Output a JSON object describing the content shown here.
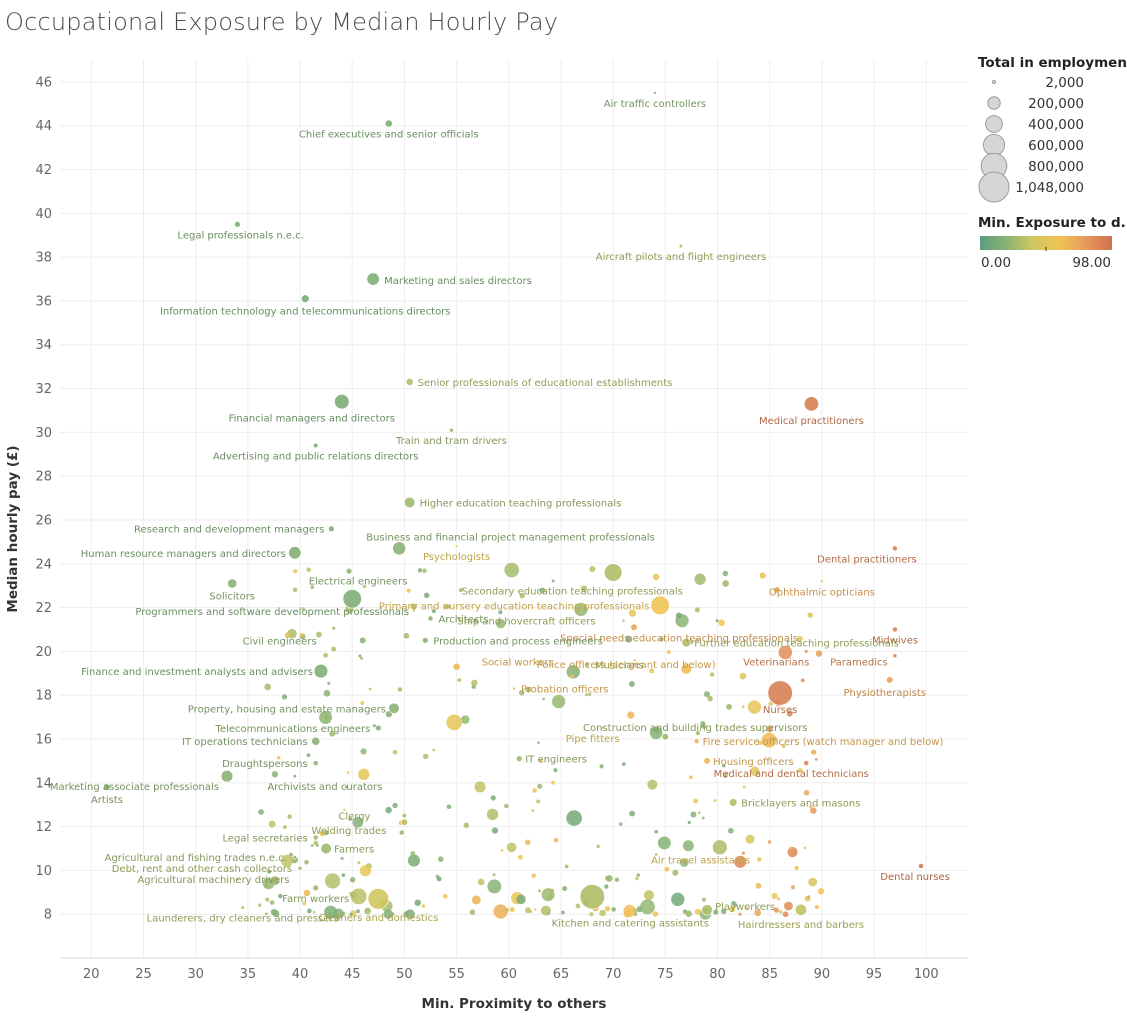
{
  "page": {
    "title": "Occupational Exposure by Median Hourly Pay"
  },
  "chart_data": {
    "type": "scatter",
    "title": "Occupational Exposure by Median Hourly Pay",
    "xlabel": "Min. Proximity to others",
    "ylabel": "Median hourly pay (£)",
    "xlim": [
      17,
      104
    ],
    "ylim": [
      6,
      47
    ],
    "xticks": [
      20,
      25,
      30,
      35,
      40,
      45,
      50,
      55,
      60,
      65,
      70,
      75,
      80,
      85,
      90,
      95,
      100
    ],
    "yticks": [
      8,
      10,
      12,
      14,
      16,
      18,
      20,
      22,
      24,
      26,
      28,
      30,
      32,
      34,
      36,
      38,
      40,
      42,
      44,
      46
    ],
    "grid": true,
    "size_encoding": "Total in employment",
    "color_encoding": "Min. Exposure to d..",
    "labeled_points": [
      {
        "label": "Air traffic controllers",
        "x": 74,
        "y": 45.5,
        "size": 2000,
        "exposure": 20
      },
      {
        "label": "Chief executives and senior officials",
        "x": 48.5,
        "y": 44.1,
        "size": 60000,
        "exposure": 15
      },
      {
        "label": "Legal professionals n.e.c.",
        "x": 34,
        "y": 39.5,
        "size": 40000,
        "exposure": 15
      },
      {
        "label": "Aircraft pilots and flight engineers",
        "x": 76.5,
        "y": 38.5,
        "size": 15000,
        "exposure": 30
      },
      {
        "label": "Marketing and sales directors",
        "x": 47,
        "y": 37,
        "size": 180000,
        "exposure": 15
      },
      {
        "label": "Information technology and telecommunications directors",
        "x": 40.5,
        "y": 36.1,
        "size": 70000,
        "exposure": 12
      },
      {
        "label": "Senior professionals of educational establishments",
        "x": 50.5,
        "y": 32.3,
        "size": 60000,
        "exposure": 30
      },
      {
        "label": "Financial managers and directors",
        "x": 44,
        "y": 31.4,
        "size": 250000,
        "exposure": 14
      },
      {
        "label": "Medical practitioners",
        "x": 89,
        "y": 31.3,
        "size": 240000,
        "exposure": 92
      },
      {
        "label": "Train and tram drivers",
        "x": 54.5,
        "y": 30.1,
        "size": 20000,
        "exposure": 25
      },
      {
        "label": "Advertising and public relations directors",
        "x": 41.5,
        "y": 29.4,
        "size": 25000,
        "exposure": 15
      },
      {
        "label": "Higher education teaching professionals",
        "x": 50.5,
        "y": 26.8,
        "size": 130000,
        "exposure": 25
      },
      {
        "label": "Research and development managers",
        "x": 43,
        "y": 25.6,
        "size": 40000,
        "exposure": 15
      },
      {
        "label": "Business and financial project management professionals",
        "x": 49.5,
        "y": 24.7,
        "size": 200000,
        "exposure": 20
      },
      {
        "label": "Human resource managers and directors",
        "x": 39.5,
        "y": 24.5,
        "size": 180000,
        "exposure": 15
      },
      {
        "label": "Psychologists",
        "x": 55,
        "y": 24.8,
        "size": 8000,
        "exposure": 55
      },
      {
        "label": "Dental practitioners",
        "x": 97,
        "y": 24.7,
        "size": 30000,
        "exposure": 90
      },
      {
        "label": "Electrical engineers",
        "x": 51.5,
        "y": 23.7,
        "size": 30000,
        "exposure": 20
      },
      {
        "label": "Secondary education teaching professionals",
        "x": 70,
        "y": 23.6,
        "size": 360000,
        "exposure": 30
      },
      {
        "label": "Ophthalmic opticians",
        "x": 90,
        "y": 23.2,
        "size": 5000,
        "exposure": 70
      },
      {
        "label": "Solicitors",
        "x": 33.5,
        "y": 23.1,
        "size": 100000,
        "exposure": 20
      },
      {
        "label": "Architects",
        "x": 52.5,
        "y": 21.5,
        "size": 30000,
        "exposure": 20
      },
      {
        "label": "Primary and nursery education teaching professionals",
        "x": 74.5,
        "y": 22.1,
        "size": 400000,
        "exposure": 58
      },
      {
        "label": "Ship and hovercraft officers",
        "x": 71,
        "y": 21.4,
        "size": 6000,
        "exposure": 30
      },
      {
        "label": "Special needs education teaching professionals",
        "x": 72,
        "y": 21.1,
        "size": 50000,
        "exposure": 72
      },
      {
        "label": "Programmers and software development professionals",
        "x": 45,
        "y": 22.4,
        "size": 400000,
        "exposure": 15
      },
      {
        "label": "Midwives",
        "x": 97,
        "y": 21,
        "size": 30000,
        "exposure": 90
      },
      {
        "label": "Further education teaching professionals",
        "x": 77,
        "y": 20.4,
        "size": 90000,
        "exposure": 30
      },
      {
        "label": "Civil engineers",
        "x": 46,
        "y": 20.5,
        "size": 50000,
        "exposure": 20
      },
      {
        "label": "Production and process engineers",
        "x": 52,
        "y": 20.5,
        "size": 40000,
        "exposure": 20
      },
      {
        "label": "Veterinarians",
        "x": 88.5,
        "y": 20,
        "size": 15000,
        "exposure": 85
      },
      {
        "label": "Paramedics",
        "x": 97,
        "y": 19.8,
        "size": 20000,
        "exposure": 85
      },
      {
        "label": "Social workers",
        "x": 55,
        "y": 19.3,
        "size": 60000,
        "exposure": 65
      },
      {
        "label": "Musicians",
        "x": 67.5,
        "y": 19.4,
        "size": 30000,
        "exposure": 30
      },
      {
        "label": "Finance and investment analysts and advisers",
        "x": 42,
        "y": 19.1,
        "size": 220000,
        "exposure": 15
      },
      {
        "label": "Police officers (sergeant and below)",
        "x": 77,
        "y": 19.2,
        "size": 130000,
        "exposure": 62
      },
      {
        "label": "Physiotherapists",
        "x": 96.5,
        "y": 18.7,
        "size": 50000,
        "exposure": 75
      },
      {
        "label": "Probation officers",
        "x": 60.5,
        "y": 18.3,
        "size": 8000,
        "exposure": 65
      },
      {
        "label": "Nurses",
        "x": 86,
        "y": 18.1,
        "size": 700000,
        "exposure": 90
      },
      {
        "label": "Property, housing and estate managers",
        "x": 49,
        "y": 17.4,
        "size": 130000,
        "exposure": 20
      },
      {
        "label": "Telecommunications engineers",
        "x": 47.5,
        "y": 16.5,
        "size": 40000,
        "exposure": 20
      },
      {
        "label": "Pipe fitters",
        "x": 69,
        "y": 16.5,
        "size": 8000,
        "exposure": 50
      },
      {
        "label": "Construction and building trades supervisors",
        "x": 75,
        "y": 16.1,
        "size": 50000,
        "exposure": 25
      },
      {
        "label": "IT operations technicians",
        "x": 41.5,
        "y": 15.9,
        "size": 80000,
        "exposure": 20
      },
      {
        "label": "Fire service officers (watch manager and below)",
        "x": 78,
        "y": 15.9,
        "size": 30000,
        "exposure": 65
      },
      {
        "label": "IT engineers",
        "x": 61,
        "y": 15.1,
        "size": 40000,
        "exposure": 25
      },
      {
        "label": "Draughtspersons",
        "x": 41.5,
        "y": 14.9,
        "size": 30000,
        "exposure": 20
      },
      {
        "label": "Housing officers",
        "x": 79,
        "y": 15,
        "size": 50000,
        "exposure": 65
      },
      {
        "label": "Medical and dental technicians",
        "x": 88.5,
        "y": 14.9,
        "size": 30000,
        "exposure": 90
      },
      {
        "label": "Archivists and curators",
        "x": 39.5,
        "y": 14.3,
        "size": 15000,
        "exposure": 20
      },
      {
        "label": "Marketing associate professionals",
        "x": 33,
        "y": 14.3,
        "size": 160000,
        "exposure": 20
      },
      {
        "label": "Artists",
        "x": 21.5,
        "y": 13.8,
        "size": 50000,
        "exposure": 20
      },
      {
        "label": "Bricklayers and masons",
        "x": 81.5,
        "y": 13.1,
        "size": 70000,
        "exposure": 30
      },
      {
        "label": "Clergy",
        "x": 50,
        "y": 12.5,
        "size": 25000,
        "exposure": 30
      },
      {
        "label": "Welding trades",
        "x": 50,
        "y": 12.2,
        "size": 50000,
        "exposure": 30
      },
      {
        "label": "Legal secretaries",
        "x": 41.5,
        "y": 11.5,
        "size": 30000,
        "exposure": 25
      },
      {
        "label": "Farmers",
        "x": 42.5,
        "y": 11,
        "size": 130000,
        "exposure": 25
      },
      {
        "label": "Air travel assistants",
        "x": 84,
        "y": 10.5,
        "size": 30000,
        "exposure": 55
      },
      {
        "label": "Agricultural and fishing trades n.e.c.",
        "x": 39.5,
        "y": 10.6,
        "size": 15000,
        "exposure": 25
      },
      {
        "label": "Debt, rent and other cash collectors",
        "x": 40,
        "y": 10.1,
        "size": 20000,
        "exposure": 30
      },
      {
        "label": "Dental nurses",
        "x": 99.5,
        "y": 10.2,
        "size": 30000,
        "exposure": 95
      },
      {
        "label": "Agricultural machinery drivers",
        "x": 34,
        "y": 9.6,
        "size": 5000,
        "exposure": 25
      },
      {
        "label": "Farm workers",
        "x": 41.5,
        "y": 9.2,
        "size": 40000,
        "exposure": 25
      },
      {
        "label": "Playworkers",
        "x": 79,
        "y": 8.2,
        "size": 130000,
        "exposure": 30
      },
      {
        "label": "Cleaners and domestics",
        "x": 47.5,
        "y": 8.7,
        "size": 500000,
        "exposure": 40
      },
      {
        "label": "Launderers, dry cleaners and pressers",
        "x": 34.5,
        "y": 8.3,
        "size": 15000,
        "exposure": 30
      },
      {
        "label": "Kitchen and catering assistants",
        "x": 68,
        "y": 8.8,
        "size": 700000,
        "exposure": 30
      },
      {
        "label": "Hairdressers and barbers",
        "x": 88,
        "y": 8.2,
        "size": 150000,
        "exposure": 35
      }
    ],
    "legend": {
      "size_title": "Total in employment",
      "size_entries": [
        "2,000",
        "200,000",
        "400,000",
        "600,000",
        "800,000",
        "1,048,000"
      ],
      "color_title": "Min. Exposure to d..",
      "color_min": "0.00",
      "color_max": "98.00",
      "colors": [
        "#5b9c7e",
        "#8ab374",
        "#cfc760",
        "#f0c453",
        "#e79a5c",
        "#d0704f"
      ]
    }
  }
}
